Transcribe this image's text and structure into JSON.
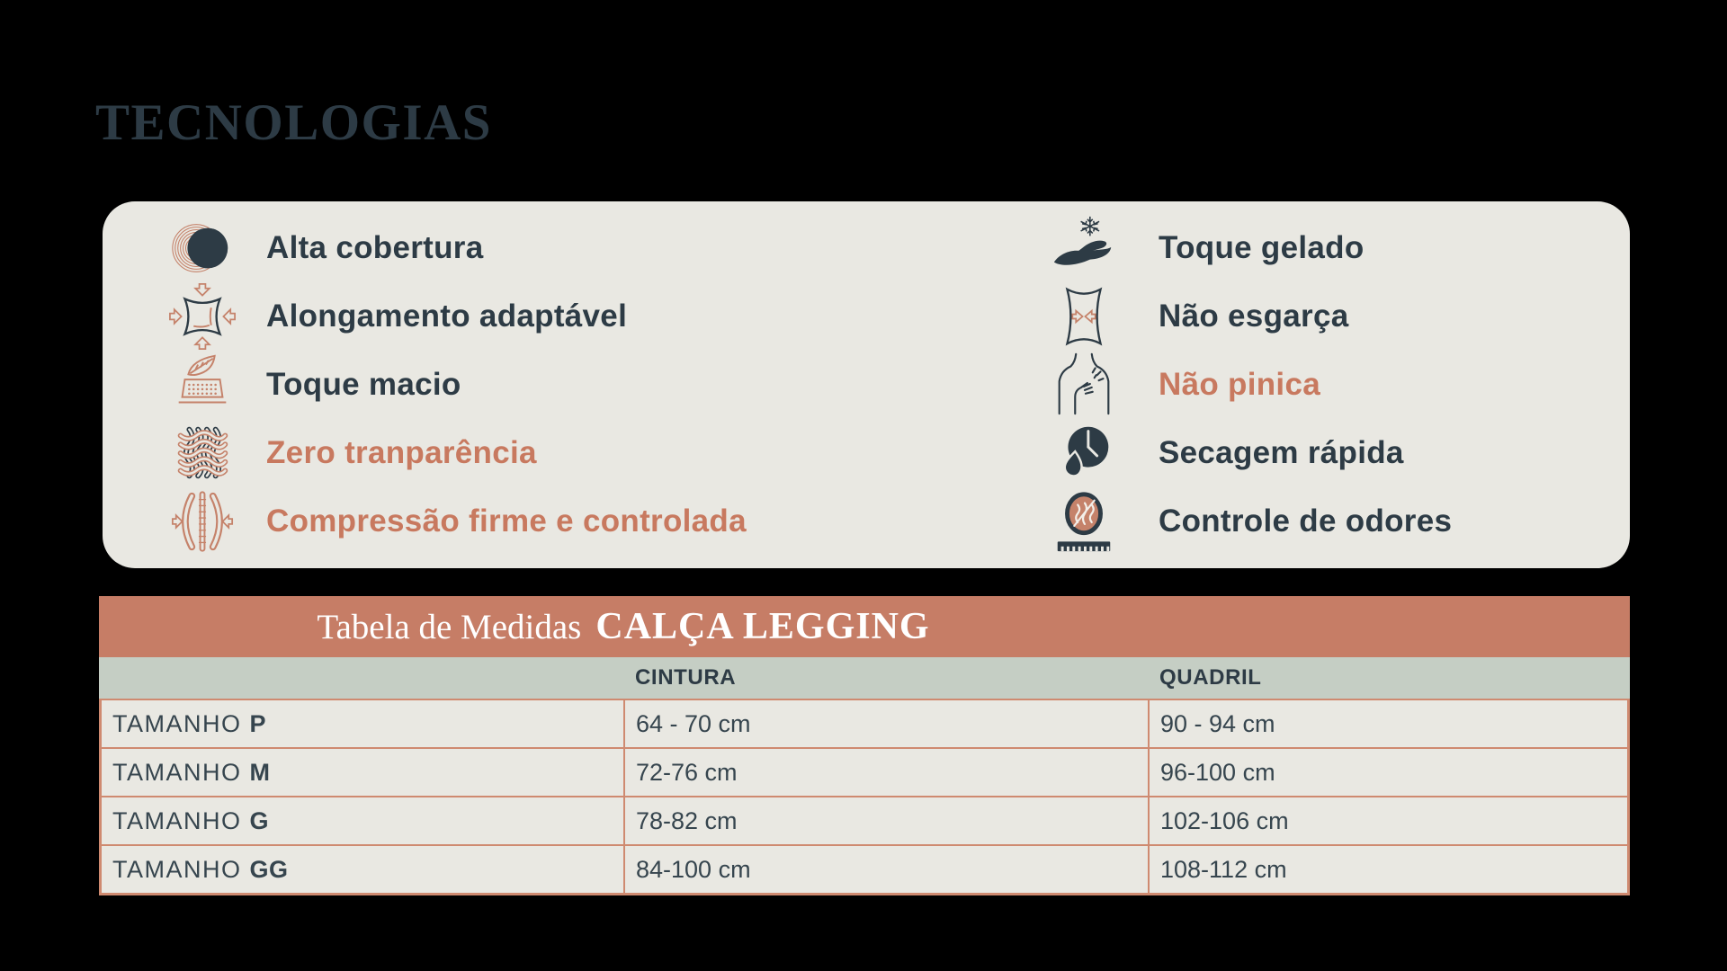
{
  "colors": {
    "background": "#000000",
    "card_bg": "#e9e8e2",
    "dark_slate": "#2d3b45",
    "accent_terracotta": "#c8795f",
    "icon_salmon": "#c5826a",
    "table_header_band": "#c67d66",
    "table_subheader_band": "#c5cec4",
    "table_border": "#cf8a70",
    "table_header_text": "#ffffff"
  },
  "technologies": {
    "section_title": "TECNOLOGIAS",
    "columns": [
      {
        "items": [
          {
            "icon": "coverage-moon-icon",
            "label": "Alta cobertura",
            "highlighted": false
          },
          {
            "icon": "adaptive-stretch-icon",
            "label": "Alongamento adaptável",
            "highlighted": false
          },
          {
            "icon": "soft-touch-feather-icon",
            "label": "Toque macio",
            "highlighted": false
          },
          {
            "icon": "woven-fabric-icon",
            "label": "Zero tranparência",
            "highlighted": true
          },
          {
            "icon": "compression-icon",
            "label": "Compressão firme e controlada",
            "highlighted": true
          }
        ]
      },
      {
        "items": [
          {
            "icon": "cold-touch-hand-icon",
            "label": "Toque gelado",
            "highlighted": false
          },
          {
            "icon": "no-fray-icon",
            "label": "Não esgarça",
            "highlighted": false
          },
          {
            "icon": "no-itch-icon",
            "label": "Não pinica",
            "highlighted": true
          },
          {
            "icon": "quick-dry-icon",
            "label": "Secagem rápida",
            "highlighted": false
          },
          {
            "icon": "odor-control-icon",
            "label": "Controle de odores",
            "highlighted": false
          }
        ]
      }
    ]
  },
  "size_table": {
    "title_prefix": "Tabela de Medidas",
    "title_product": "CALÇA LEGGING",
    "columns": [
      "",
      "CINTURA",
      "QUADRIL"
    ],
    "rows": [
      {
        "label": "TAMANHO",
        "size": "P",
        "cintura": "64 - 70 cm",
        "quadril": "90 - 94 cm"
      },
      {
        "label": "TAMANHO",
        "size": "M",
        "cintura": "72-76 cm",
        "quadril": "96-100 cm"
      },
      {
        "label": "TAMANHO",
        "size": "G",
        "cintura": "78-82 cm",
        "quadril": "102-106 cm"
      },
      {
        "label": "TAMANHO",
        "size": "GG",
        "cintura": "84-100 cm",
        "quadril": "108-112 cm"
      }
    ]
  }
}
